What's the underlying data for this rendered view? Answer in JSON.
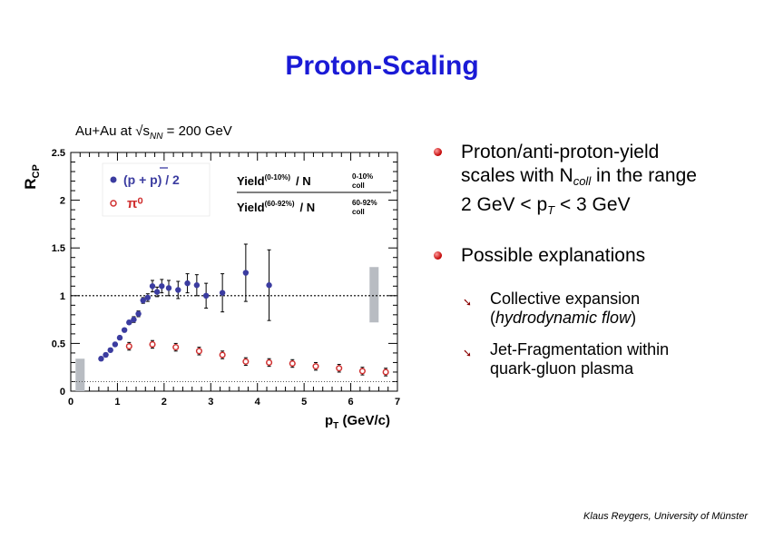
{
  "slide": {
    "title": "Proton-Scaling",
    "subtitle_prefix": "Au+Au at √s",
    "subtitle_sub": "NN",
    "subtitle_suffix": " = 200 GeV",
    "credit": "Klaus Reygers, University of Münster"
  },
  "bullets": [
    {
      "line1": "Proton/anti-proton-yield",
      "line2_pre": "scales with N",
      "line2_sub": "coll",
      "line2_post": " in the range",
      "line3_pre": "2 GeV < p",
      "line3_sub": "T",
      "line3_post": " < 3 GeV"
    },
    {
      "text": "Possible explanations",
      "sub_items": [
        {
          "pre": "Collective expansion",
          "line2_pre": "(",
          "line2_em": "hydrodynamic flow",
          "line2_post": ")"
        },
        {
          "pre": "Jet-Fragmentation within",
          "line2_pre": "quark-gluon plasma",
          "line2_em": "",
          "line2_post": ""
        }
      ]
    }
  ],
  "chart_data": {
    "type": "scatter",
    "ylabel": "R",
    "ylabel_sub": "CP",
    "xlabel": "p",
    "xlabel_sub": "T",
    "xlabel_unit": " (GeV/c)",
    "xlim": [
      0,
      7
    ],
    "ylim": [
      0,
      2.5
    ],
    "x_ticks": [
      "0",
      "1",
      "2",
      "3",
      "4",
      "5",
      "6",
      "7"
    ],
    "y_ticks": [
      "0",
      "0.5",
      "1",
      "1.5",
      "2",
      "2.5"
    ],
    "legend": {
      "placement": "top-left",
      "entries": [
        "(p + p) / 2",
        "π⁰"
      ],
      "formula_num": "Yield",
      "formula_num_sup": "(0-10%)",
      "formula_den": "Yield",
      "formula_den_sup": "(60-92%)",
      "formula_n": "/ N",
      "formula_top_label": "0-10%",
      "formula_bot_label": "60-92%",
      "formula_coll": "coll"
    },
    "reference_lines": [
      1.0,
      0.1
    ],
    "series": [
      {
        "name": "(p + p) / 2",
        "color": "#3b3ca0",
        "marker": "filled-circle",
        "points": [
          {
            "x": 0.65,
            "y": 0.34,
            "err": 0.02
          },
          {
            "x": 0.75,
            "y": 0.38,
            "err": 0.02
          },
          {
            "x": 0.85,
            "y": 0.43,
            "err": 0.02
          },
          {
            "x": 0.95,
            "y": 0.49,
            "err": 0.02
          },
          {
            "x": 1.05,
            "y": 0.56,
            "err": 0.02
          },
          {
            "x": 1.15,
            "y": 0.64,
            "err": 0.02
          },
          {
            "x": 1.25,
            "y": 0.72,
            "err": 0.02
          },
          {
            "x": 1.35,
            "y": 0.75,
            "err": 0.03
          },
          {
            "x": 1.45,
            "y": 0.81,
            "err": 0.03
          },
          {
            "x": 1.55,
            "y": 0.95,
            "err": 0.03
          },
          {
            "x": 1.65,
            "y": 0.98,
            "err": 0.04
          },
          {
            "x": 1.75,
            "y": 1.1,
            "err": 0.06
          },
          {
            "x": 1.85,
            "y": 1.04,
            "err": 0.05
          },
          {
            "x": 1.95,
            "y": 1.1,
            "err": 0.07
          },
          {
            "x": 2.1,
            "y": 1.08,
            "err": 0.08
          },
          {
            "x": 2.3,
            "y": 1.06,
            "err": 0.09
          },
          {
            "x": 2.5,
            "y": 1.13,
            "err": 0.1
          },
          {
            "x": 2.7,
            "y": 1.11,
            "err": 0.11
          },
          {
            "x": 2.9,
            "y": 1.0,
            "err": 0.13
          },
          {
            "x": 3.25,
            "y": 1.03,
            "err": 0.2
          },
          {
            "x": 3.75,
            "y": 1.24,
            "err": 0.3
          },
          {
            "x": 4.25,
            "y": 1.11,
            "err": 0.37
          }
        ]
      },
      {
        "name": "π⁰",
        "color": "#d03030",
        "marker": "open-circle",
        "points": [
          {
            "x": 1.25,
            "y": 0.47,
            "err": 0.04
          },
          {
            "x": 1.75,
            "y": 0.49,
            "err": 0.04
          },
          {
            "x": 2.25,
            "y": 0.46,
            "err": 0.04
          },
          {
            "x": 2.75,
            "y": 0.42,
            "err": 0.04
          },
          {
            "x": 3.25,
            "y": 0.38,
            "err": 0.04
          },
          {
            "x": 3.75,
            "y": 0.31,
            "err": 0.04
          },
          {
            "x": 4.25,
            "y": 0.3,
            "err": 0.04
          },
          {
            "x": 4.75,
            "y": 0.29,
            "err": 0.04
          },
          {
            "x": 5.25,
            "y": 0.26,
            "err": 0.04
          },
          {
            "x": 5.75,
            "y": 0.24,
            "err": 0.04
          },
          {
            "x": 6.25,
            "y": 0.21,
            "err": 0.04
          },
          {
            "x": 6.75,
            "y": 0.2,
            "err": 0.04
          }
        ]
      }
    ],
    "systematic_bands": [
      {
        "x": 0.2,
        "y_low": 0.0,
        "y_high": 0.34,
        "color": "#b8bcc2"
      },
      {
        "x": 6.5,
        "y_low": 0.72,
        "y_high": 1.3,
        "color": "#b8bcc2"
      }
    ]
  }
}
